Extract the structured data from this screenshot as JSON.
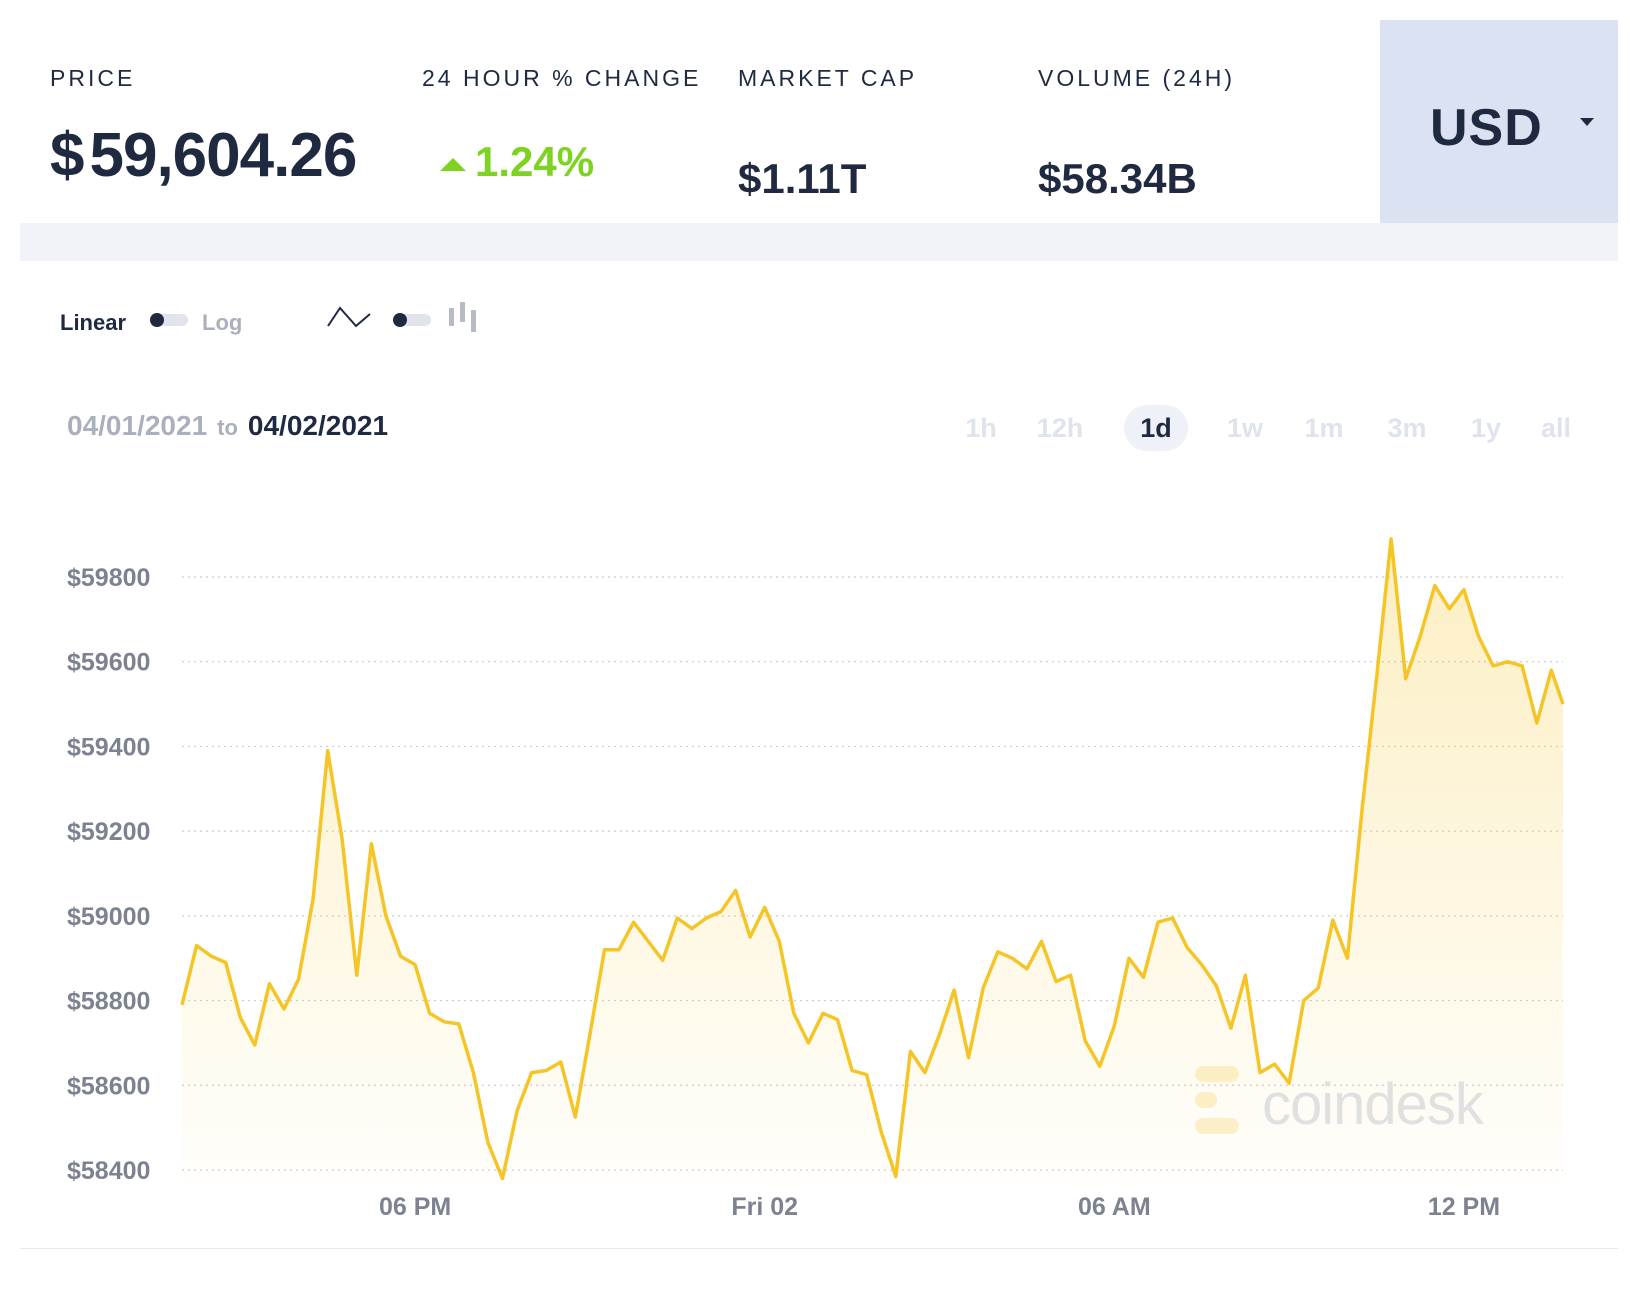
{
  "stats": {
    "price_label": "PRICE",
    "price_currency_symbol": "$",
    "price_value": "59,604.26",
    "change_label": "24 HOUR % CHANGE",
    "change_value": "1.24%",
    "market_cap_label": "MARKET CAP",
    "market_cap_value": "$1.11T",
    "volume_label": "VOLUME (24H)",
    "volume_value": "$58.34B"
  },
  "currency_select": {
    "value": "USD"
  },
  "controls": {
    "scale_left_label": "Linear",
    "scale_right_label": "Log"
  },
  "date_range": {
    "from": "04/01/2021",
    "to_word": "to",
    "to": "04/02/2021"
  },
  "time_ranges": [
    {
      "label": "1h",
      "active": false
    },
    {
      "label": "12h",
      "active": false
    },
    {
      "label": "1d",
      "active": true
    },
    {
      "label": "1w",
      "active": false
    },
    {
      "label": "1m",
      "active": false
    },
    {
      "label": "3m",
      "active": false
    },
    {
      "label": "1y",
      "active": false
    },
    {
      "label": "all",
      "active": false
    }
  ],
  "watermark": "coindesk",
  "colors": {
    "line": "#f5c527",
    "positive": "#7ed321",
    "currency_bg": "#dbe2f2",
    "text_dark": "#1f2940"
  },
  "chart_data": {
    "type": "area",
    "y_unit_prefix": "$",
    "ylim": [
      58380,
      59890
    ],
    "y_ticks": [
      58400,
      58600,
      58800,
      59000,
      59200,
      59400,
      59600,
      59800
    ],
    "x_range_hours": [
      0,
      23.7
    ],
    "x_ticks": [
      {
        "label": "06 PM",
        "hour": 4
      },
      {
        "label": "Fri 02",
        "hour": 10
      },
      {
        "label": "06 AM",
        "hour": 16
      },
      {
        "label": "12 PM",
        "hour": 22
      }
    ],
    "grid": true,
    "series": [
      {
        "x_hours": [
          0,
          0.25,
          0.5,
          0.75,
          1,
          1.25,
          1.5,
          1.75,
          2,
          2.25,
          2.5,
          2.75,
          3,
          3.25,
          3.5,
          3.75,
          4,
          4.25,
          4.5,
          4.75,
          5,
          5.25,
          5.5,
          5.75,
          6,
          6.25,
          6.5,
          6.75,
          7,
          7.25,
          7.5,
          7.75,
          8,
          8.25,
          8.5,
          8.75,
          9,
          9.25,
          9.5,
          9.75,
          10,
          10.25,
          10.5,
          10.75,
          11,
          11.25,
          11.5,
          11.75,
          12,
          12.25,
          12.5,
          12.75,
          13,
          13.25,
          13.5,
          13.75,
          14,
          14.25,
          14.5,
          14.75,
          15,
          15.25,
          15.5,
          15.75,
          16,
          16.25,
          16.5,
          16.75,
          17,
          17.25,
          17.5,
          17.75,
          18,
          18.25,
          18.5,
          18.75,
          19,
          19.25,
          19.5,
          19.75,
          20,
          20.25,
          20.5,
          20.75,
          21,
          21.25,
          21.5,
          21.75,
          22,
          22.25,
          22.5,
          22.75,
          23,
          23.25,
          23.5,
          23.7
        ],
        "values": [
          58790,
          58930,
          58905,
          58890,
          58760,
          58695,
          58840,
          58780,
          58850,
          59040,
          59390,
          59180,
          58860,
          59170,
          59000,
          58905,
          58885,
          58770,
          58750,
          58745,
          58630,
          58465,
          58380,
          58540,
          58630,
          58635,
          58655,
          58525,
          58720,
          58920,
          58920,
          58985,
          58940,
          58895,
          58995,
          58970,
          58995,
          59010,
          59060,
          58950,
          59020,
          58940,
          58770,
          58700,
          58770,
          58755,
          58635,
          58625,
          58490,
          58385,
          58680,
          58630,
          58720,
          58825,
          58665,
          58830,
          58915,
          58900,
          58875,
          58940,
          58845,
          58860,
          58705,
          58645,
          58740,
          58900,
          58855,
          58985,
          58995,
          58925,
          58885,
          58835,
          58735,
          58860,
          58630,
          58650,
          58605,
          58800,
          58830,
          58990,
          58900,
          59250,
          59560,
          59890,
          59560,
          59660,
          59780,
          59725,
          59770,
          59660,
          59590,
          59600,
          59590,
          59455,
          59580,
          59500
        ]
      }
    ]
  }
}
